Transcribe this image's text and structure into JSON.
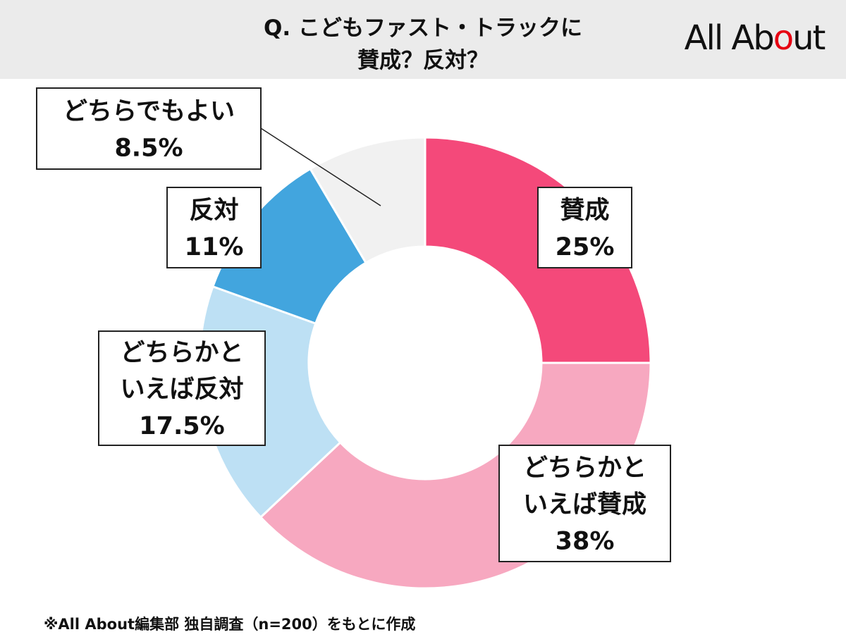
{
  "chart_data": {
    "type": "donut",
    "title": [
      "Q. こどもファスト・トラックに",
      "賛成？反対？"
    ],
    "brand": "All About",
    "categories": [
      "賛成",
      "どちらかといえば賛成",
      "どちらかといえば反対",
      "反対",
      "どちらでもよい"
    ],
    "values": [
      25,
      38,
      17.5,
      11,
      8.5
    ],
    "value_labels": [
      "25%",
      "38%",
      "17.5%",
      "11%",
      "8.5%"
    ],
    "colors": [
      "#f4497a",
      "#f7a8c0",
      "#bde0f4",
      "#42a5de",
      "#f1f1f1"
    ],
    "footnote": "※All About編集部 独自調査（n=200）をもとに作成"
  }
}
